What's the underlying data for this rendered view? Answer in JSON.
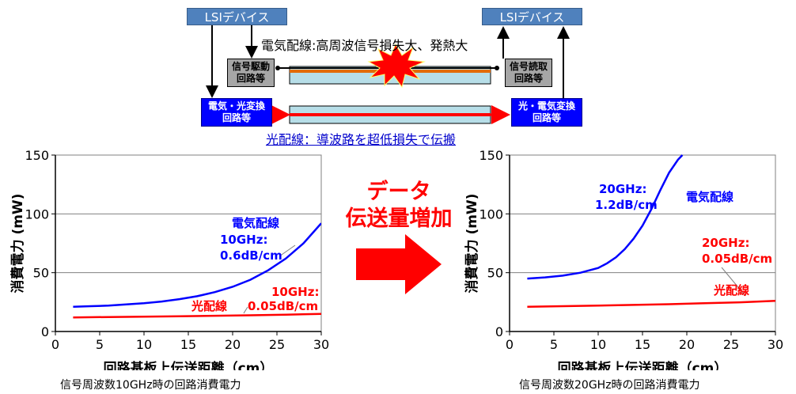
{
  "diagram": {
    "lsi_left": "LSIデバイス",
    "lsi_right": "LSIデバイス",
    "electric_title": "電気配線:高周波信号損失大、発熱大",
    "drive_circuit": "信号駆動\n回路等",
    "read_circuit": "信号読取\n回路等",
    "eo_circuit": "電気・光変換\n回路等",
    "oe_circuit": "光・電気変換\n回路等",
    "optical_title": "光配線：導波路を超低損失で伝搬"
  },
  "arrow_text": "データ\n伝送量増加",
  "captions": {
    "left": "信号周波数10GHz時の回路消費電力",
    "right": "信号周波数20GHz時の回路消費電力"
  },
  "colors": {
    "electric": "#0000ff",
    "optical": "#ff0000",
    "arrow": "#ff0000",
    "lsi_box": "#4f81bd",
    "gray_box": "#a6a6a6",
    "waveguide": "#b7dee8"
  },
  "chart_data": [
    {
      "type": "line",
      "title": "",
      "xlabel": "回路基板上伝送距離（cm）",
      "ylabel": "消費電力 (mW)",
      "xlim": [
        0,
        30
      ],
      "ylim": [
        0,
        150
      ],
      "xticks": [
        0,
        5,
        10,
        15,
        20,
        25,
        30
      ],
      "yticks": [
        0,
        50,
        100,
        150
      ],
      "grid": "horizontal",
      "series": [
        {
          "name": "電気配線",
          "color": "#0000ff",
          "annotation": [
            "10GHz:",
            "0.6dB/cm"
          ],
          "x": [
            2,
            4,
            6,
            8,
            10,
            12,
            14,
            16,
            18,
            20,
            22,
            24,
            26,
            28,
            30
          ],
          "y": [
            21,
            21.5,
            22,
            23,
            24,
            25.5,
            27.5,
            30,
            33.5,
            38,
            44,
            52,
            62,
            75,
            92
          ]
        },
        {
          "name": "光配線",
          "color": "#ff0000",
          "annotation": [
            "10GHz:",
            "0.05dB/cm"
          ],
          "x": [
            2,
            6,
            10,
            14,
            18,
            22,
            26,
            30
          ],
          "y": [
            12,
            12.3,
            12.6,
            13,
            13.4,
            13.8,
            14.3,
            15
          ]
        }
      ]
    },
    {
      "type": "line",
      "title": "",
      "xlabel": "回路基板上伝送距離（cm）",
      "ylabel": "消費電力 (mW)",
      "xlim": [
        0,
        30
      ],
      "ylim": [
        0,
        150
      ],
      "xticks": [
        0,
        5,
        10,
        15,
        20,
        25,
        30
      ],
      "yticks": [
        0,
        50,
        100,
        150
      ],
      "grid": "horizontal",
      "series": [
        {
          "name": "電気配線",
          "color": "#0000ff",
          "annotation": [
            "20GHz:",
            "1.2dB/cm"
          ],
          "x": [
            2,
            4,
            6,
            8,
            10,
            11,
            12,
            13,
            14,
            15,
            16,
            17,
            18,
            19,
            19.5
          ],
          "y": [
            45,
            46,
            47.5,
            50,
            54,
            58,
            63,
            70,
            79,
            90,
            104,
            120,
            135,
            146,
            150
          ]
        },
        {
          "name": "光配線",
          "color": "#ff0000",
          "annotation": [
            "20GHz:",
            "0.05dB/cm"
          ],
          "x": [
            2,
            6,
            10,
            14,
            18,
            22,
            26,
            30
          ],
          "y": [
            21,
            21.5,
            22,
            22.6,
            23.2,
            24,
            24.8,
            26
          ]
        }
      ]
    }
  ]
}
